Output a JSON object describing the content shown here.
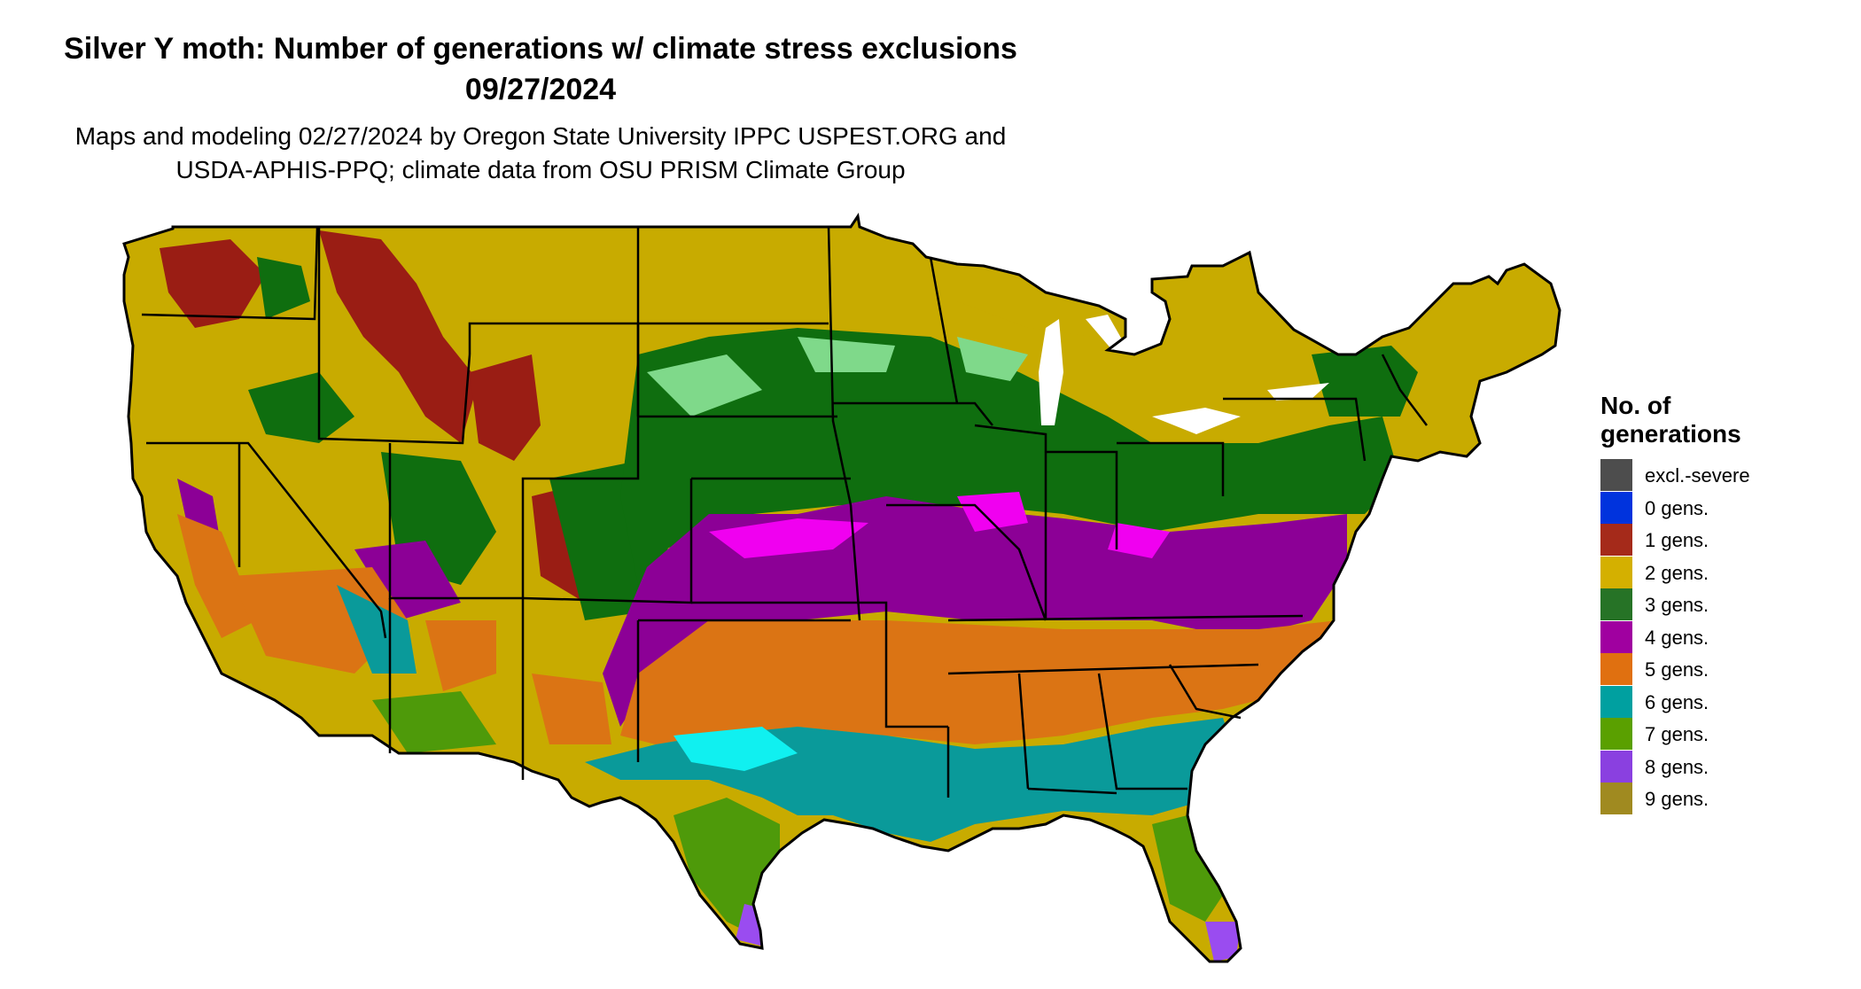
{
  "title_line1": "Silver Y moth: Number of generations w/ climate stress exclusions",
  "title_line2": "09/27/2024",
  "subtitle_line1": "Maps and modeling 02/27/2024 by Oregon State University IPPC USPEST.ORG and",
  "subtitle_line2": "USDA-APHIS-PPQ; climate data from OSU PRISM Climate Group",
  "legend": {
    "title_line1": "No. of",
    "title_line2": "generations",
    "items": [
      {
        "label": "excl.-severe",
        "color": "#4d4d4d"
      },
      {
        "label": "0 gens.",
        "color": "#0033dd"
      },
      {
        "label": "1 gens.",
        "color": "#a52a1a"
      },
      {
        "label": "2 gens.",
        "color": "#d4b000"
      },
      {
        "label": "3 gens.",
        "color": "#267326"
      },
      {
        "label": "4 gens.",
        "color": "#a000a0"
      },
      {
        "label": "5 gens.",
        "color": "#e07010"
      },
      {
        "label": "6 gens.",
        "color": "#00a0a0"
      },
      {
        "label": "7 gens.",
        "color": "#5aa000"
      },
      {
        "label": "8 gens.",
        "color": "#8a40e0"
      },
      {
        "label": "9 gens.",
        "color": "#a08a20"
      }
    ]
  },
  "map_colors": {
    "gen2": "#c8ab00",
    "gen3": "#0f6e0f",
    "gen4": "#8c0096",
    "gen5": "#db7414",
    "gen6": "#0a9a9a",
    "gen7": "#4e9a0a",
    "gen1": "#9a1d14",
    "gen8": "#9a4cf0",
    "light_green": "#7fd98a",
    "magenta": "#f000f0",
    "cyan": "#10f0f0",
    "yellow_green": "#c8e61e",
    "orange_light": "#f0a050",
    "white_lake": "#ffffff"
  }
}
